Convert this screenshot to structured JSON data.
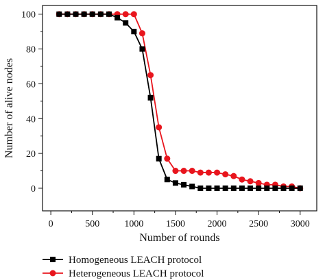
{
  "chart_data": {
    "type": "line",
    "title": "",
    "xlabel": "Number of rounds",
    "ylabel": "Number of alive nodes",
    "xlim": [
      -100,
      3200
    ],
    "ylim": [
      -13,
      105
    ],
    "xticks": [
      0,
      500,
      1000,
      1500,
      2000,
      2500,
      3000
    ],
    "yticks": [
      0,
      20,
      40,
      60,
      80,
      100
    ],
    "grid": false,
    "legend_position": "bottom",
    "series": [
      {
        "name": "Homogeneous LEACH protocol",
        "color": "#000000",
        "marker": "square",
        "x": [
          100,
          200,
          300,
          400,
          500,
          600,
          700,
          800,
          900,
          1000,
          1100,
          1200,
          1300,
          1400,
          1500,
          1600,
          1700,
          1800,
          1900,
          2000,
          2100,
          2200,
          2300,
          2400,
          2500,
          2600,
          2700,
          2800,
          2900,
          3000
        ],
        "y": [
          100,
          100,
          100,
          100,
          100,
          100,
          100,
          98,
          95,
          90,
          80,
          52,
          17,
          5,
          3,
          2,
          1,
          0,
          0,
          0,
          0,
          0,
          0,
          0,
          0,
          0,
          0,
          0,
          0,
          0
        ]
      },
      {
        "name": "Heterogeneous LEACH protocol",
        "color": "#e8151d",
        "marker": "circle",
        "x": [
          100,
          200,
          300,
          400,
          500,
          600,
          700,
          800,
          900,
          1000,
          1100,
          1200,
          1300,
          1400,
          1500,
          1600,
          1700,
          1800,
          1900,
          2000,
          2100,
          2200,
          2300,
          2400,
          2500,
          2600,
          2700,
          2800,
          2900,
          3000
        ],
        "y": [
          100,
          100,
          100,
          100,
          100,
          100,
          100,
          100,
          100,
          100,
          89,
          65,
          35,
          17,
          10,
          10,
          10,
          9,
          9,
          9,
          8,
          7,
          5,
          4,
          3,
          2,
          2,
          1,
          1,
          0
        ]
      }
    ]
  }
}
